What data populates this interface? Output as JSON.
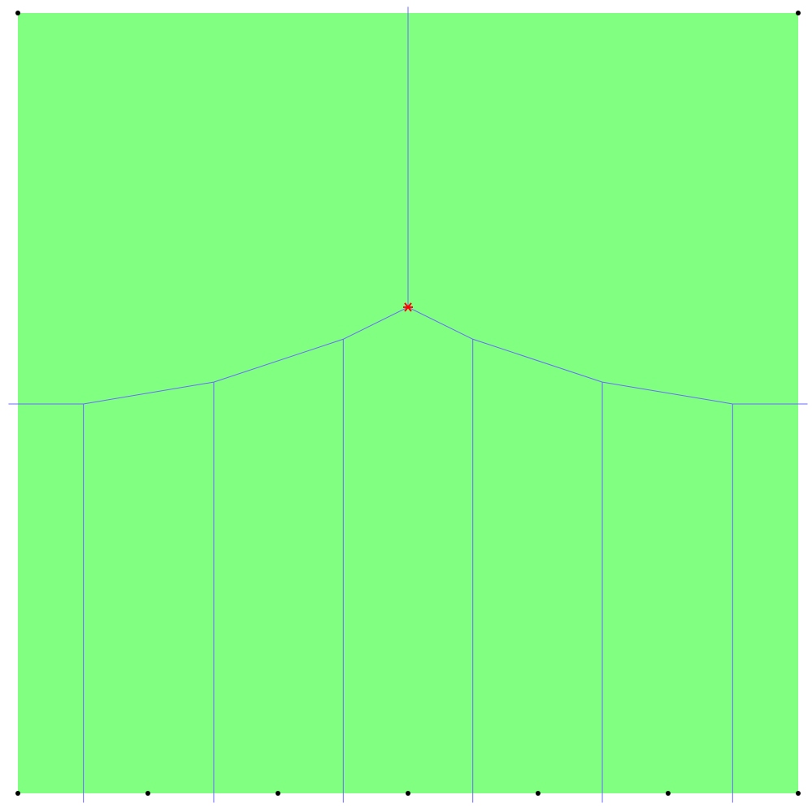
{
  "diagram": {
    "type": "voronoi",
    "colors": {
      "background": "#ffffff",
      "region_fill": "#80ff80",
      "edge": "#6a6aff",
      "site": "#000000",
      "marker": "#ff0000"
    },
    "sites": [
      {
        "id": "top-left",
        "x": 0,
        "y": 10
      },
      {
        "id": "top-right",
        "x": 10,
        "y": 10
      },
      {
        "id": "bottom-1",
        "x": 0,
        "y": 0
      },
      {
        "id": "bottom-2",
        "x": 1.666,
        "y": 0
      },
      {
        "id": "bottom-3",
        "x": 3.333,
        "y": 0
      },
      {
        "id": "bottom-4",
        "x": 5,
        "y": 0
      },
      {
        "id": "bottom-5",
        "x": 6.666,
        "y": 0
      },
      {
        "id": "bottom-6",
        "x": 8.333,
        "y": 0
      },
      {
        "id": "bottom-7",
        "x": 10,
        "y": 0
      }
    ],
    "edges": [
      {
        "id": "edge-top-vertical",
        "points": [
          [
            5,
            10.08
          ],
          [
            5,
            6.23
          ]
        ]
      },
      {
        "id": "edge-left-horizontal",
        "points": [
          [
            -0.12,
            4.99
          ],
          [
            0.84,
            4.99
          ]
        ]
      },
      {
        "id": "edge-right-horizontal",
        "points": [
          [
            9.16,
            4.99
          ],
          [
            10.12,
            4.99
          ]
        ]
      },
      {
        "id": "edge-upper-boundary",
        "points": [
          [
            0.84,
            4.99
          ],
          [
            2.51,
            5.27
          ],
          [
            4.17,
            5.82
          ],
          [
            5,
            6.23
          ],
          [
            5.83,
            5.82
          ],
          [
            7.49,
            5.27
          ],
          [
            9.16,
            4.99
          ]
        ]
      },
      {
        "id": "edge-vertical-1",
        "points": [
          [
            0.84,
            4.99
          ],
          [
            0.84,
            -0.12
          ]
        ]
      },
      {
        "id": "edge-vertical-2",
        "points": [
          [
            2.51,
            5.27
          ],
          [
            2.51,
            -0.12
          ]
        ]
      },
      {
        "id": "edge-vertical-3",
        "points": [
          [
            4.17,
            5.82
          ],
          [
            4.17,
            -0.12
          ]
        ]
      },
      {
        "id": "edge-vertical-4",
        "points": [
          [
            5.83,
            5.82
          ],
          [
            5.83,
            -0.12
          ]
        ]
      },
      {
        "id": "edge-vertical-5",
        "points": [
          [
            7.49,
            5.27
          ],
          [
            7.49,
            -0.12
          ]
        ]
      },
      {
        "id": "edge-vertical-6",
        "points": [
          [
            9.16,
            4.99
          ],
          [
            9.16,
            -0.12
          ]
        ]
      }
    ],
    "marker": {
      "id": "red-star",
      "x": 5,
      "y": 6.23
    },
    "domain": {
      "xlim": [
        0,
        10
      ],
      "ylim": [
        0,
        10
      ]
    }
  }
}
